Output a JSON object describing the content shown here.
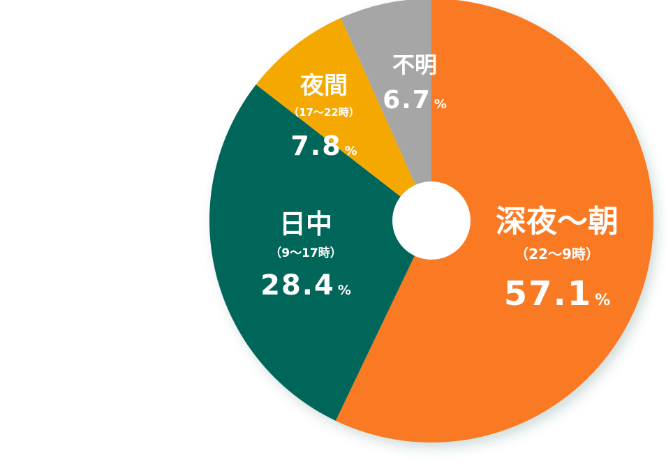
{
  "chart_data": {
    "type": "pie",
    "donut": true,
    "legend": "none",
    "series": [
      {
        "name": "深夜～朝",
        "sub": "（22～9時）",
        "value": 57.1,
        "color": "#F97A20"
      },
      {
        "name": "日中",
        "sub": "（9～17時）",
        "value": 28.4,
        "color": "#00665A"
      },
      {
        "name": "夜間",
        "sub": "（17～22時）",
        "value": 7.8,
        "color": "#F5A902"
      },
      {
        "name": "不明",
        "sub": "",
        "value": 6.7,
        "color": "#A6A6A6"
      }
    ],
    "unit": "%"
  }
}
